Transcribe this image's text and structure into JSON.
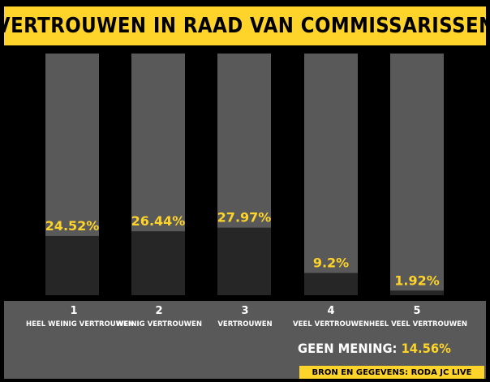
{
  "title": "VERTROUWEN IN RAAD VAN COMMISSARISSEN",
  "colors": {
    "accent": "#fed32a",
    "track": "#595959",
    "fill": "#262626",
    "background": "#000000"
  },
  "chart_data": {
    "type": "bar",
    "categories": [
      "1",
      "2",
      "3",
      "4",
      "5"
    ],
    "category_labels": [
      "HEEL WEINIG VERTROUWEN",
      "WEINIG VERTROUWEN",
      "VERTROUWEN",
      "VEEL VERTROUWEN",
      "HEEL VEEL VERTROUWEN"
    ],
    "values": [
      24.52,
      26.44,
      27.97,
      9.2,
      1.92
    ],
    "value_labels": [
      "24.52%",
      "26.44%",
      "27.97%",
      "9.2%",
      "1.92%"
    ],
    "ylim": [
      0,
      100
    ],
    "xlabel": "",
    "ylabel": ""
  },
  "no_opinion": {
    "label": "GEEN MENING:",
    "value": "14.56%"
  },
  "source": {
    "label": "BRON EN GEGEVENS:",
    "name": "RODA JC LIVE"
  }
}
